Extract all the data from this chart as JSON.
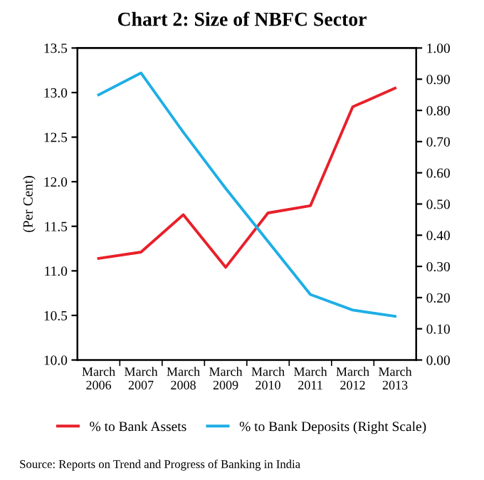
{
  "chart_data": {
    "type": "line",
    "title": "Chart 2: Size of NBFC Sector",
    "ylabel": "(Per Cent)",
    "categories": [
      "March\n2006",
      "March\n2007",
      "March\n2008",
      "March\n2009",
      "March\n2010",
      "March\n2011",
      "March\n2012",
      "March\n2013"
    ],
    "series": [
      {
        "name": "% to Bank Assets",
        "color": "#e8202a",
        "values": [
          11.14,
          11.21,
          11.63,
          11.04,
          11.65,
          11.73,
          12.84,
          13.05
        ]
      },
      {
        "name": "% to Bank Deposits (Right Scale)",
        "color": "#1eaee6",
        "axis": "y2",
        "values": [
          0.85,
          0.92,
          0.73,
          0.55,
          0.38,
          0.21,
          0.16,
          0.14
        ]
      }
    ],
    "ylim": [
      10.0,
      13.5
    ],
    "yticks": [
      {
        "value": 10.0,
        "label": "10.0"
      },
      {
        "value": 10.5,
        "label": "10.5"
      },
      {
        "value": 11.0,
        "label": "11.0"
      },
      {
        "value": 11.5,
        "label": "11.5"
      },
      {
        "value": 12.0,
        "label": "12.0"
      },
      {
        "value": 12.5,
        "label": "12.5"
      },
      {
        "value": 13.0,
        "label": "13.0"
      },
      {
        "value": 13.5,
        "label": "13.5"
      }
    ],
    "y2lim": [
      0.0,
      1.0
    ],
    "y2ticks": [
      {
        "value": 0.0,
        "label": "0.00"
      },
      {
        "value": 0.1,
        "label": "0.10"
      },
      {
        "value": 0.2,
        "label": "0.20"
      },
      {
        "value": 0.3,
        "label": "0.30"
      },
      {
        "value": 0.4,
        "label": "0.40"
      },
      {
        "value": 0.5,
        "label": "0.50"
      },
      {
        "value": 0.6,
        "label": "0.60"
      },
      {
        "value": 0.7,
        "label": "0.70"
      },
      {
        "value": 0.8,
        "label": "0.80"
      },
      {
        "value": 0.9,
        "label": "0.90"
      },
      {
        "value": 1.0,
        "label": "1.00"
      }
    ],
    "grid": false,
    "legend": "bottom",
    "marker": "none",
    "line_style": "solid",
    "annotations": [
      "Source: Reports on Trend and Progress of Banking in India"
    ]
  }
}
